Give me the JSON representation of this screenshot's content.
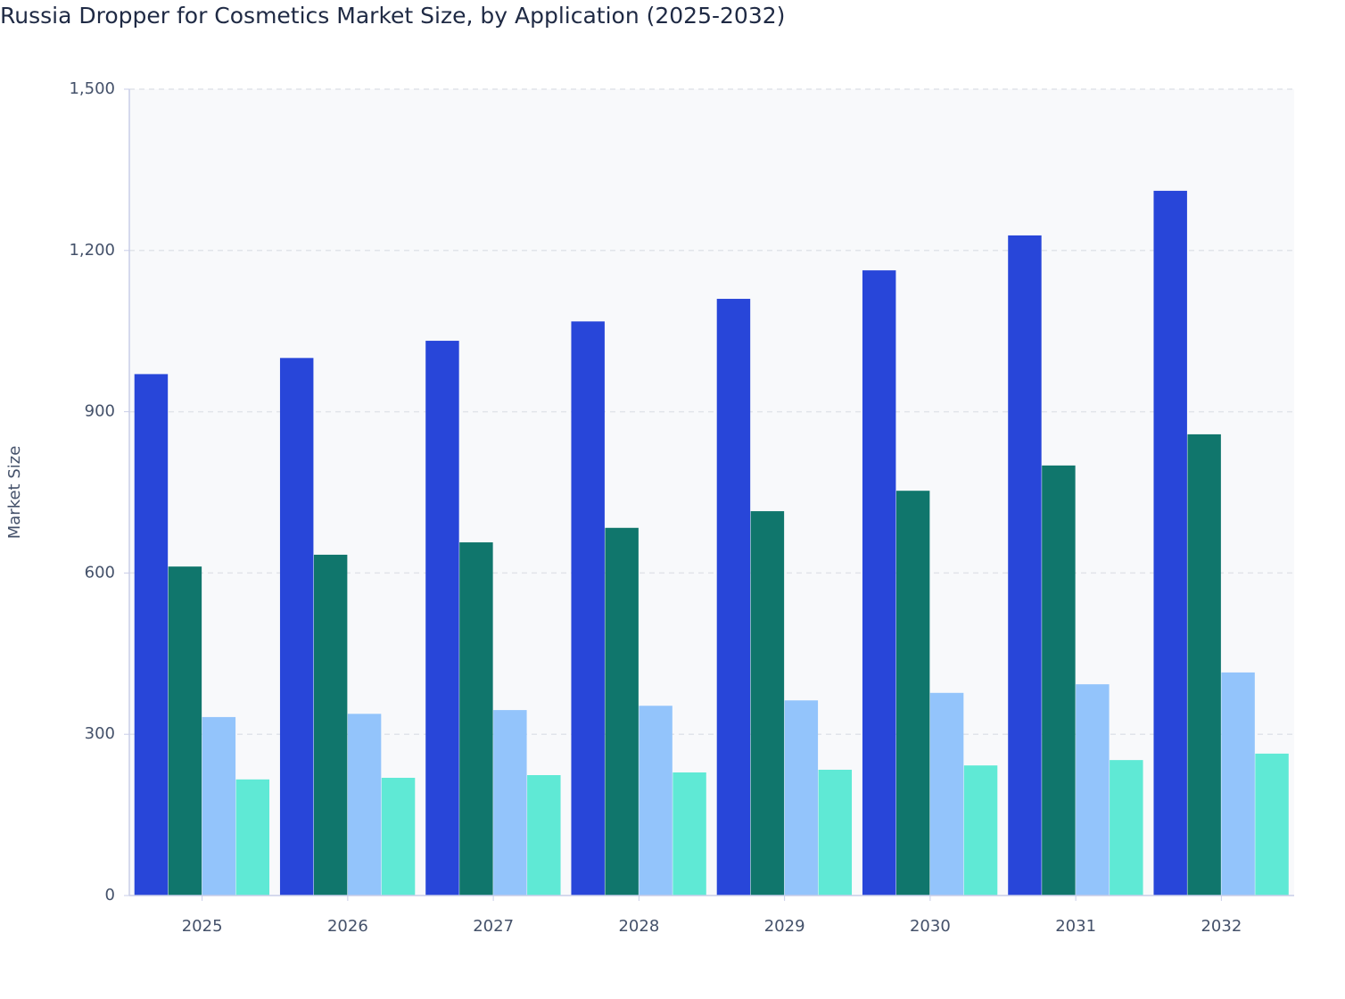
{
  "chart_data": {
    "type": "bar",
    "title": "Russia Dropper for Cosmetics Market Size, by Application (2025-2032)",
    "y_label": "Market Size",
    "categories": [
      "2025",
      "2026",
      "2027",
      "2028",
      "2029",
      "2030",
      "2031",
      "2032"
    ],
    "series": [
      {
        "color": "#2846d9",
        "values": [
          970,
          1000,
          1032,
          1068,
          1110,
          1163,
          1228,
          1311
        ]
      },
      {
        "color": "#10766c",
        "values": [
          612,
          634,
          657,
          684,
          715,
          753,
          800,
          858
        ]
      },
      {
        "color": "#93c4fb",
        "values": [
          332,
          338,
          345,
          353,
          363,
          377,
          393,
          415
        ]
      },
      {
        "color": "#5fe9d5",
        "values": [
          216,
          219,
          224,
          229,
          234,
          242,
          252,
          264
        ]
      }
    ],
    "ylim": [
      0,
      1500
    ],
    "yticks": [
      0,
      300,
      600,
      900,
      {
        "value": 1200,
        "label": "1,200"
      },
      {
        "value": 1500,
        "label": "1,500"
      }
    ],
    "grid": true
  }
}
